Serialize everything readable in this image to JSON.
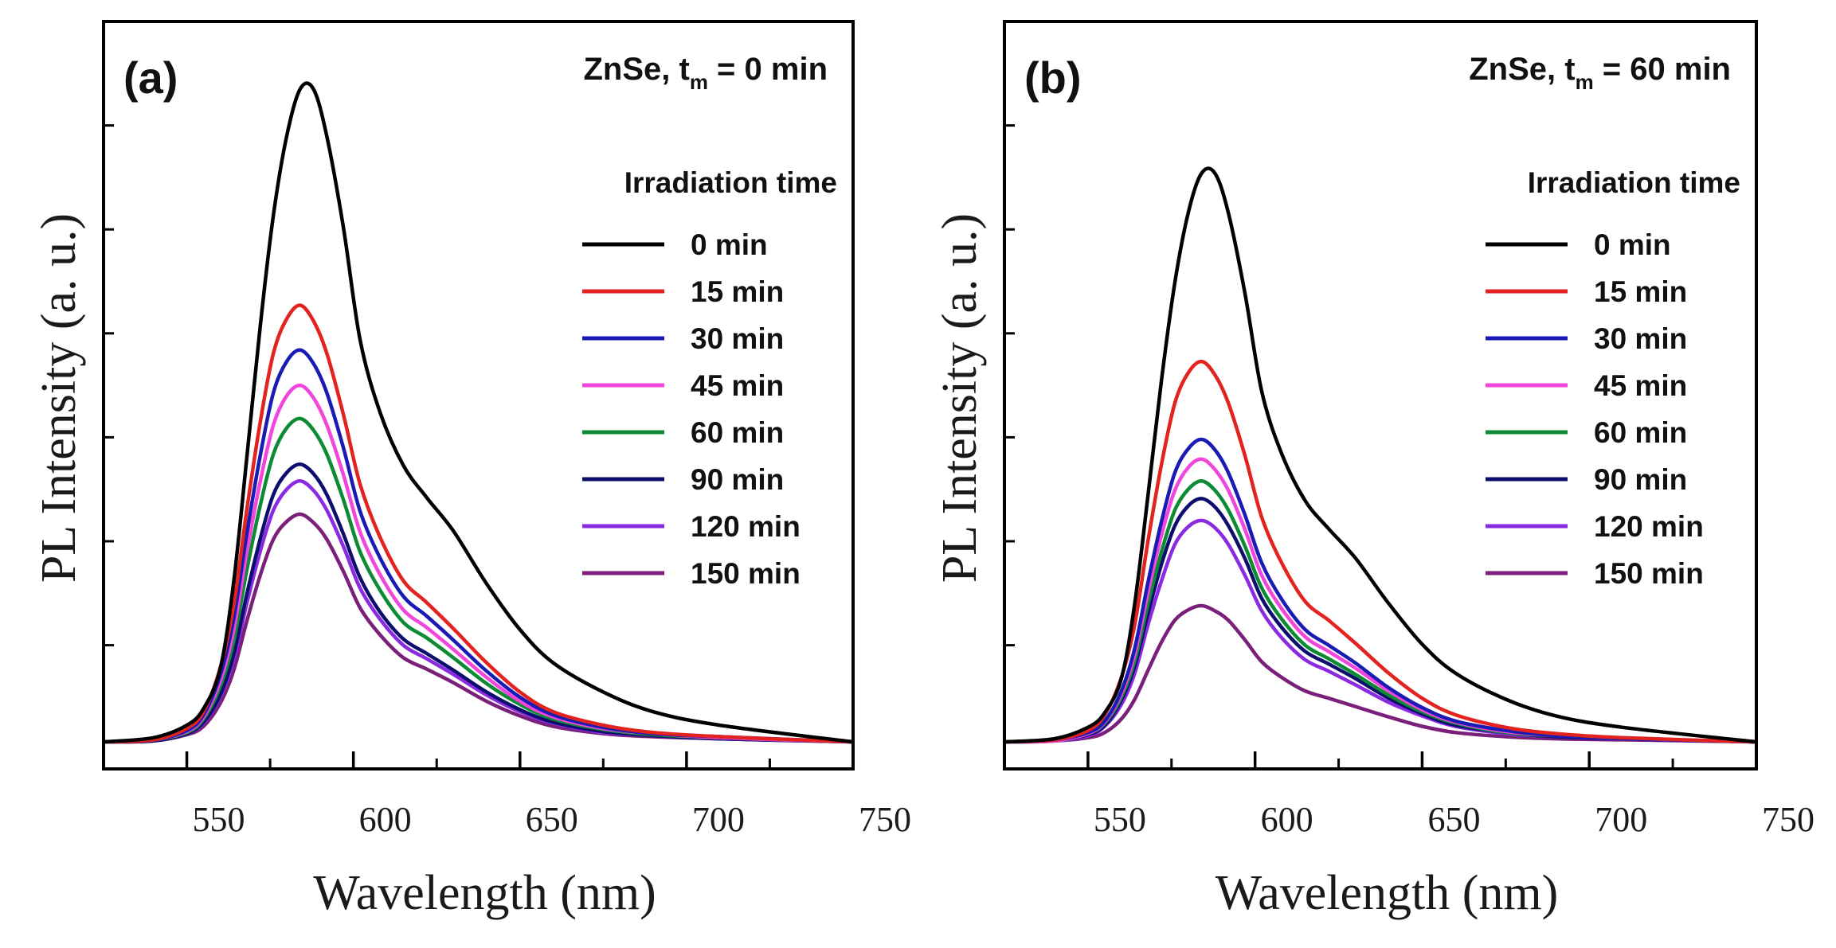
{
  "chart_data": [
    {
      "type": "line",
      "panel_label": "(a)",
      "title": {
        "prefix": "ZnSe, t",
        "sub": "m",
        "suffix": " = 0 min"
      },
      "xlabel": "Wavelength (nm)",
      "ylabel": "PL Intensity (a. u.)",
      "xlim": [
        525,
        750
      ],
      "ylim": [
        -0.19,
        7
      ],
      "xticks": [
        550,
        600,
        650,
        700
      ],
      "xticks_minor": [
        575,
        625,
        675,
        725
      ],
      "xtick_values": [
        550,
        600,
        650,
        700,
        750
      ],
      "xtick_labels": [
        "550",
        "600",
        "650",
        "700",
        "750"
      ],
      "yticks": [
        1,
        2,
        3,
        4,
        5,
        6
      ],
      "legend_title": "Irradiation time",
      "legend_position": "top-right",
      "x": [
        525,
        540,
        550,
        555,
        560,
        564,
        568,
        572,
        576,
        580,
        584,
        588,
        592,
        597,
        602,
        608,
        615,
        622,
        630,
        640,
        650,
        660,
        675,
        690,
        710,
        750
      ],
      "series": [
        {
          "name": "0 min",
          "color": "#000000",
          "values": [
            0.07,
            0.11,
            0.23,
            0.39,
            0.77,
            1.59,
            2.8,
            4.06,
            5.14,
            5.9,
            6.35,
            6.35,
            5.9,
            5.02,
            3.94,
            3.24,
            2.73,
            2.42,
            2.1,
            1.59,
            1.15,
            0.83,
            0.55,
            0.36,
            0.23,
            0.07
          ]
        },
        {
          "name": "15 min",
          "color": "#e3231f",
          "values": [
            0.07,
            0.09,
            0.2,
            0.36,
            0.78,
            1.37,
            2.3,
            3.14,
            3.81,
            4.14,
            4.27,
            4.12,
            3.81,
            3.22,
            2.55,
            2.04,
            1.62,
            1.41,
            1.16,
            0.83,
            0.55,
            0.36,
            0.23,
            0.16,
            0.12,
            0.07
          ]
        },
        {
          "name": "30 min",
          "color": "#1a1ab4",
          "values": [
            0.07,
            0.09,
            0.18,
            0.33,
            0.71,
            1.24,
            2.07,
            2.82,
            3.43,
            3.73,
            3.84,
            3.71,
            3.43,
            2.9,
            2.29,
            1.84,
            1.47,
            1.28,
            1.05,
            0.75,
            0.5,
            0.33,
            0.21,
            0.15,
            0.12,
            0.07
          ]
        },
        {
          "name": "45 min",
          "color": "#f046dc",
          "values": [
            0.07,
            0.09,
            0.17,
            0.31,
            0.65,
            1.13,
            1.89,
            2.57,
            3.12,
            3.4,
            3.5,
            3.38,
            3.12,
            2.64,
            2.09,
            1.68,
            1.34,
            1.17,
            0.96,
            0.69,
            0.46,
            0.31,
            0.2,
            0.15,
            0.11,
            0.07
          ]
        },
        {
          "name": "60 min",
          "color": "#0c8a34",
          "values": [
            0.07,
            0.09,
            0.16,
            0.29,
            0.6,
            1.03,
            1.72,
            2.34,
            2.84,
            3.09,
            3.18,
            3.07,
            2.84,
            2.4,
            1.9,
            1.53,
            1.22,
            1.07,
            0.88,
            0.63,
            0.43,
            0.29,
            0.19,
            0.14,
            0.11,
            0.07
          ]
        },
        {
          "name": "90 min",
          "color": "#0d0d6e",
          "values": [
            0.07,
            0.08,
            0.15,
            0.26,
            0.52,
            0.9,
            1.49,
            2.02,
            2.45,
            2.66,
            2.74,
            2.65,
            2.45,
            2.07,
            1.65,
            1.32,
            1.06,
            0.92,
            0.76,
            0.55,
            0.38,
            0.26,
            0.17,
            0.13,
            0.1,
            0.07
          ]
        },
        {
          "name": "120 min",
          "color": "#8a2be2",
          "values": [
            0.07,
            0.08,
            0.15,
            0.25,
            0.5,
            0.85,
            1.4,
            1.9,
            2.3,
            2.5,
            2.58,
            2.49,
            2.3,
            1.95,
            1.55,
            1.25,
            1.0,
            0.87,
            0.72,
            0.52,
            0.36,
            0.25,
            0.16,
            0.13,
            0.1,
            0.07
          ]
        },
        {
          "name": "150 min",
          "color": "#7a1f7a",
          "values": [
            0.07,
            0.08,
            0.14,
            0.22,
            0.44,
            0.75,
            1.23,
            1.67,
            2.02,
            2.19,
            2.26,
            2.18,
            2.02,
            1.71,
            1.36,
            1.1,
            0.88,
            0.77,
            0.64,
            0.46,
            0.32,
            0.22,
            0.15,
            0.12,
            0.1,
            0.07
          ]
        }
      ]
    },
    {
      "type": "line",
      "panel_label": "(b)",
      "title": {
        "prefix": "ZnSe, t",
        "sub": "m",
        "suffix": " = 60 min"
      },
      "xlabel": "Wavelength (nm)",
      "ylabel": "PL Intensity (a. u.)",
      "xlim": [
        525,
        750
      ],
      "ylim": [
        -0.19,
        7
      ],
      "xticks": [
        550,
        600,
        650,
        700
      ],
      "xticks_minor": [
        575,
        625,
        675,
        725
      ],
      "xtick_values": [
        550,
        600,
        650,
        700,
        750
      ],
      "xtick_labels": [
        "550",
        "600",
        "650",
        "700",
        "750"
      ],
      "yticks": [
        1,
        2,
        3,
        4,
        5,
        6
      ],
      "legend_title": "Irradiation time",
      "legend_position": "top-right",
      "x": [
        525,
        540,
        550,
        555,
        560,
        564,
        568,
        572,
        576,
        580,
        584,
        588,
        592,
        597,
        602,
        608,
        615,
        622,
        630,
        640,
        650,
        660,
        675,
        690,
        710,
        750
      ],
      "series": [
        {
          "name": "0 min",
          "color": "#000000",
          "values": [
            0.07,
            0.1,
            0.21,
            0.35,
            0.68,
            1.4,
            2.45,
            3.55,
            4.49,
            5.16,
            5.54,
            5.54,
            5.16,
            4.38,
            3.44,
            2.84,
            2.39,
            2.12,
            1.84,
            1.4,
            1.01,
            0.73,
            0.48,
            0.32,
            0.21,
            0.07
          ]
        },
        {
          "name": "15 min",
          "color": "#e3231f",
          "values": [
            0.07,
            0.09,
            0.18,
            0.33,
            0.69,
            1.2,
            2.01,
            2.74,
            3.33,
            3.62,
            3.73,
            3.6,
            3.33,
            2.82,
            2.23,
            1.79,
            1.42,
            1.24,
            1.02,
            0.73,
            0.49,
            0.33,
            0.21,
            0.15,
            0.11,
            0.07
          ]
        },
        {
          "name": "30 min",
          "color": "#1a1ab4",
          "values": [
            0.07,
            0.09,
            0.16,
            0.27,
            0.56,
            0.97,
            1.61,
            2.19,
            2.66,
            2.89,
            2.98,
            2.88,
            2.66,
            2.25,
            1.79,
            1.44,
            1.15,
            1.0,
            0.83,
            0.59,
            0.4,
            0.27,
            0.18,
            0.13,
            0.1,
            0.07
          ]
        },
        {
          "name": "45 min",
          "color": "#f046dc",
          "values": [
            0.07,
            0.08,
            0.15,
            0.26,
            0.53,
            0.91,
            1.51,
            2.06,
            2.49,
            2.71,
            2.79,
            2.69,
            2.49,
            2.11,
            1.67,
            1.35,
            1.08,
            0.94,
            0.78,
            0.56,
            0.38,
            0.26,
            0.17,
            0.13,
            0.1,
            0.07
          ]
        },
        {
          "name": "60 min",
          "color": "#0c8a34",
          "values": [
            0.07,
            0.08,
            0.15,
            0.25,
            0.5,
            0.85,
            1.4,
            1.9,
            2.3,
            2.5,
            2.58,
            2.49,
            2.3,
            1.95,
            1.55,
            1.25,
            1.0,
            0.87,
            0.72,
            0.52,
            0.36,
            0.25,
            0.16,
            0.13,
            0.1,
            0.07
          ]
        },
        {
          "name": "90 min",
          "color": "#0d0d6e",
          "values": [
            0.07,
            0.08,
            0.14,
            0.23,
            0.47,
            0.8,
            1.31,
            1.78,
            2.15,
            2.34,
            2.41,
            2.33,
            2.15,
            1.83,
            1.45,
            1.17,
            0.94,
            0.82,
            0.68,
            0.49,
            0.34,
            0.23,
            0.16,
            0.12,
            0.1,
            0.07
          ]
        },
        {
          "name": "120 min",
          "color": "#8a2be2",
          "values": [
            0.07,
            0.08,
            0.13,
            0.22,
            0.43,
            0.73,
            1.2,
            1.62,
            1.97,
            2.14,
            2.2,
            2.13,
            1.97,
            1.67,
            1.33,
            1.07,
            0.86,
            0.75,
            0.62,
            0.45,
            0.32,
            0.22,
            0.15,
            0.12,
            0.1,
            0.07
          ]
        },
        {
          "name": "150 min",
          "color": "#7a1f7a",
          "values": [
            0.07,
            0.08,
            0.11,
            0.16,
            0.29,
            0.48,
            0.76,
            1.03,
            1.24,
            1.34,
            1.38,
            1.33,
            1.24,
            1.05,
            0.84,
            0.69,
            0.56,
            0.49,
            0.41,
            0.31,
            0.22,
            0.16,
            0.12,
            0.1,
            0.09,
            0.07
          ]
        }
      ]
    }
  ]
}
